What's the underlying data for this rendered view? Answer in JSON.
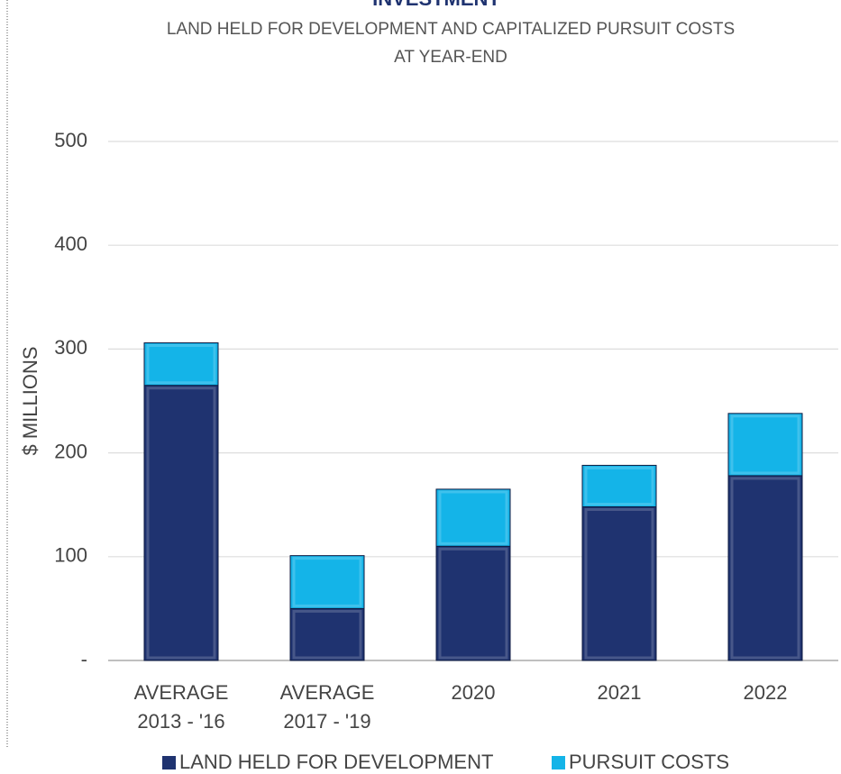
{
  "chart_data": {
    "type": "stacked_bar",
    "title": "INVESTMENT",
    "subtitle": [
      "LAND HELD FOR DEVELOPMENT AND CAPITALIZED PURSUIT COSTS",
      "AT YEAR-END"
    ],
    "y_label": "$ MILLIONS",
    "categories": [
      [
        "AVERAGE",
        "2013 - '16"
      ],
      [
        "AVERAGE",
        "2017 - '19"
      ],
      [
        "2020"
      ],
      [
        "2021"
      ],
      [
        "2022"
      ]
    ],
    "series": [
      {
        "name": "LAND HELD FOR DEVELOPMENT",
        "color": "#1f3370",
        "values": [
          265,
          50,
          110,
          148,
          178
        ]
      },
      {
        "name": "PURSUIT COSTS",
        "color": "#14b4e8",
        "values": [
          41,
          51,
          55,
          40,
          60
        ]
      }
    ],
    "ylim": [
      0,
      500
    ],
    "yticks": [
      {
        "value": 0,
        "label": "-"
      },
      100,
      200,
      300,
      400,
      500
    ],
    "grid": true
  }
}
